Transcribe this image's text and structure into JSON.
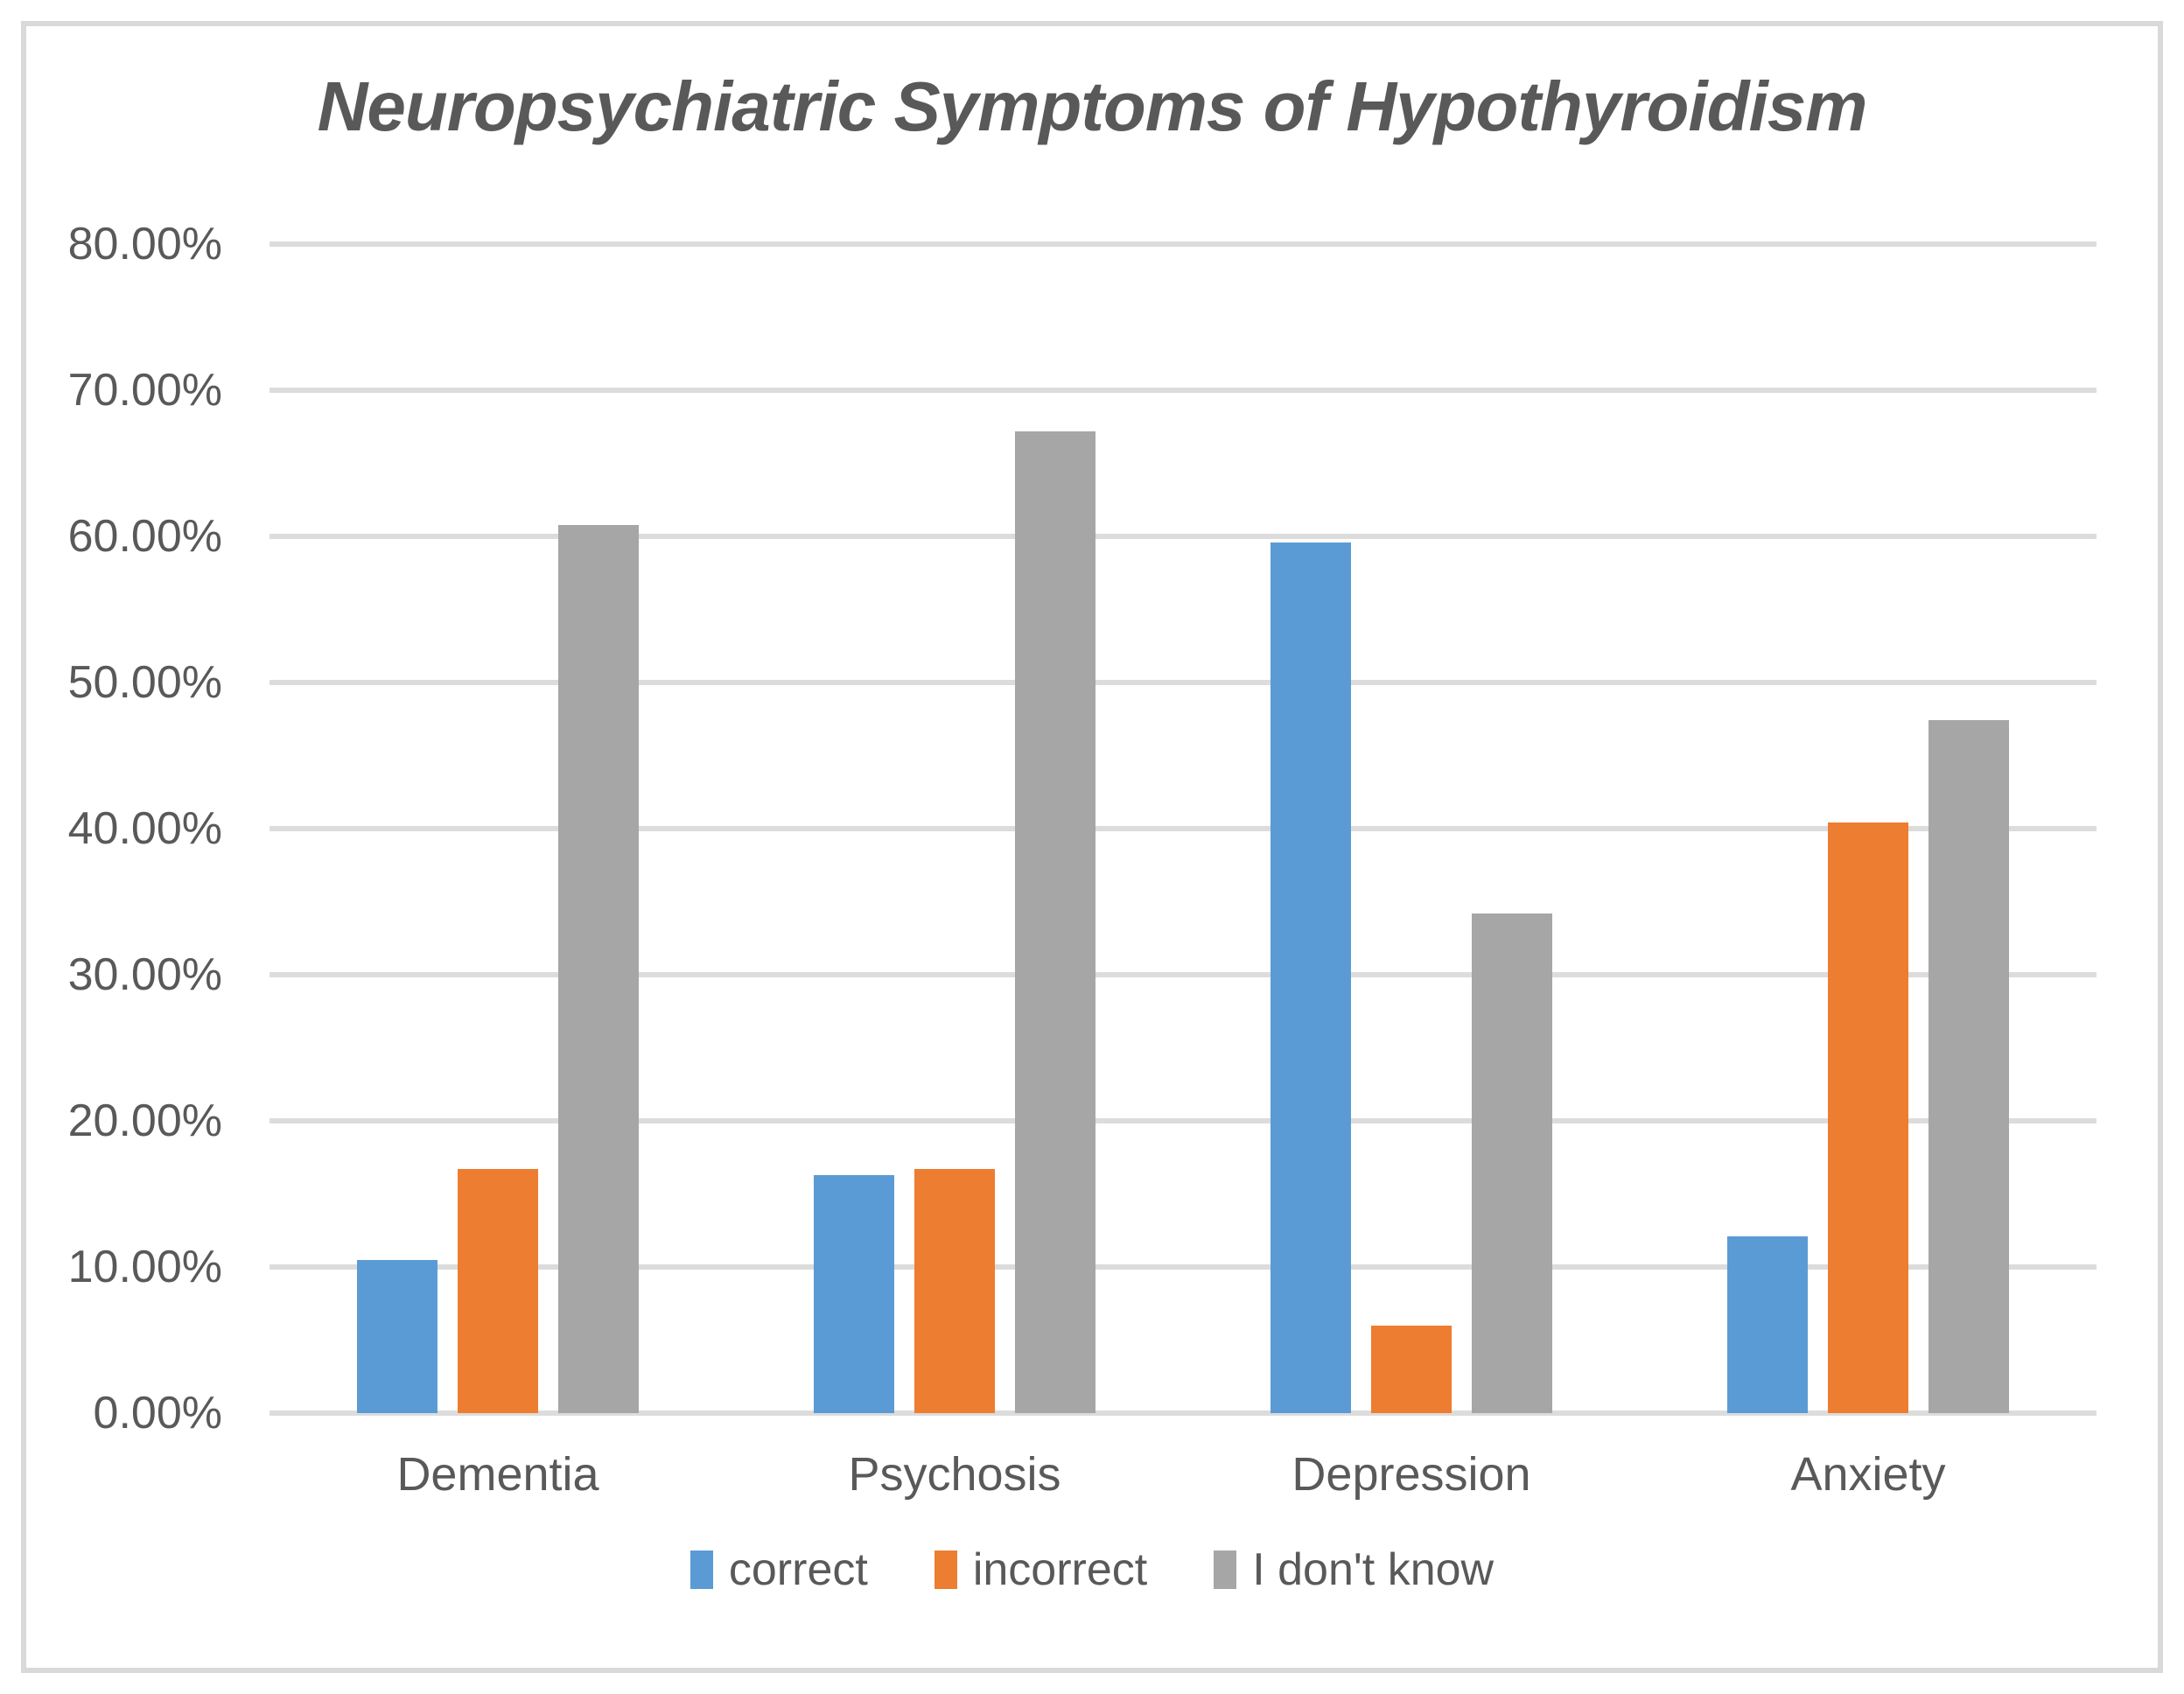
{
  "chart": {
    "title": "Neuropsychiatric Symptoms of Hypothyroidism"
  },
  "chart_data": {
    "type": "bar",
    "title": "Neuropsychiatric Symptoms of Hypothyroidism",
    "categories": [
      "Dementia",
      "Psychosis",
      "Depression",
      "Anxiety"
    ],
    "series": [
      {
        "name": "correct",
        "color": "#5B9BD5",
        "values": [
          10.5,
          16.3,
          59.6,
          12.1
        ]
      },
      {
        "name": "incorrect",
        "color": "#ED7D31",
        "values": [
          16.7,
          16.7,
          6.0,
          40.4
        ]
      },
      {
        "name": "I don't know",
        "color": "#A6A6A6",
        "values": [
          60.8,
          67.2,
          34.2,
          47.4
        ]
      }
    ],
    "xlabel": "",
    "ylabel": "",
    "ylim": [
      0,
      80
    ],
    "ytick_step": 10,
    "ytick_labels": [
      "0.00%",
      "10.00%",
      "20.00%",
      "30.00%",
      "40.00%",
      "50.00%",
      "60.00%",
      "70.00%",
      "80.00%"
    ],
    "grid": true,
    "legend_position": "bottom",
    "colors": {
      "gridline": "#DCDCDC",
      "frame_border": "#D9D9D9",
      "text": "#595959",
      "background": "#FFFFFF"
    }
  }
}
